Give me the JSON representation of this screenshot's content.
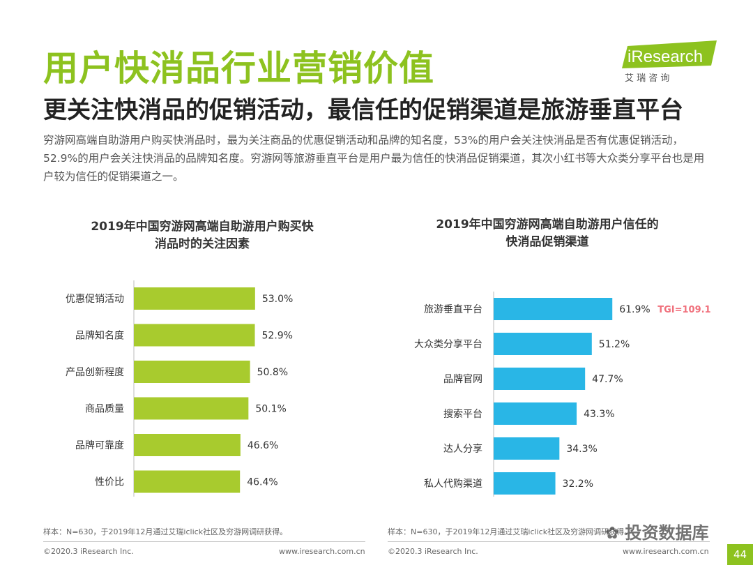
{
  "header": {
    "title": "用户快消品行业营销价值",
    "subtitle": "更关注快消品的促销活动，最信任的促销渠道是旅游垂直平台",
    "intro": "穷游网高端自助游用户购买快消品时，最为关注商品的优惠促销活动和品牌的知名度，53%的用户会关注快消品是否有优惠促销活动，52.9%的用户会关注快消品的品牌知名度。穷游网等旅游垂直平台是用户最为信任的快消品促销渠道，其次小红书等大众类分享平台也是用户较为信任的促销渠道之一。"
  },
  "logo": {
    "text": "iResearch",
    "subtext": "艾 瑞 咨 询",
    "color": "#8dc21f"
  },
  "colors": {
    "accent_green": "#8dc21f",
    "bar_green": "#a8cb2e",
    "bar_blue": "#29b6e6",
    "tgi": "#f0707c"
  },
  "chart_data": [
    {
      "type": "bar",
      "orientation": "horizontal",
      "title": "2019年中国穷游网高端自助游用户购买快消品时的关注因素",
      "categories": [
        "优惠促销活动",
        "品牌知名度",
        "产品创新程度",
        "商品质量",
        "品牌可靠度",
        "性价比"
      ],
      "values": [
        53.0,
        52.9,
        50.8,
        50.1,
        46.6,
        46.4
      ],
      "value_labels": [
        "53.0%",
        "52.9%",
        "50.8%",
        "50.1%",
        "46.6%",
        "46.4%"
      ],
      "color": "#a8cb2e"
    },
    {
      "type": "bar",
      "orientation": "horizontal",
      "title": "2019年中国穷游网高端自助游用户信任的快消品促销渠道",
      "categories": [
        "旅游垂直平台",
        "大众类分享平台",
        "品牌官网",
        "搜索平台",
        "达人分享",
        "私人代购渠道"
      ],
      "values": [
        61.9,
        51.2,
        47.7,
        43.3,
        34.3,
        32.2
      ],
      "value_labels": [
        "61.9%",
        "51.2%",
        "47.7%",
        "43.3%",
        "34.3%",
        "32.2%"
      ],
      "annotation": "TGI=109.1",
      "color": "#29b6e6"
    }
  ],
  "chart1_title_lines": [
    "2019年中国穷游网高端自助游用户购买快",
    "消品时的关注因素"
  ],
  "chart2_title_lines": [
    "2019年中国穷游网高端自助游用户信任的",
    "快消品促销渠道"
  ],
  "footer": {
    "note_left": "样本：N=630，于2019年12月通过艾瑞iclick社区及穷游网调研获得。",
    "note_right": "样本：N=630，于2019年12月通过艾瑞iclick社区及穷游网调研获得。",
    "copyright_left": "©2020.3 iResearch Inc.",
    "url_left": "www.iresearch.com.cn",
    "copyright_right": "©2020.3 iResearch Inc.",
    "url_right": "www.iresearch.com.cn",
    "page_number": "44",
    "watermark": "投资数据库"
  }
}
